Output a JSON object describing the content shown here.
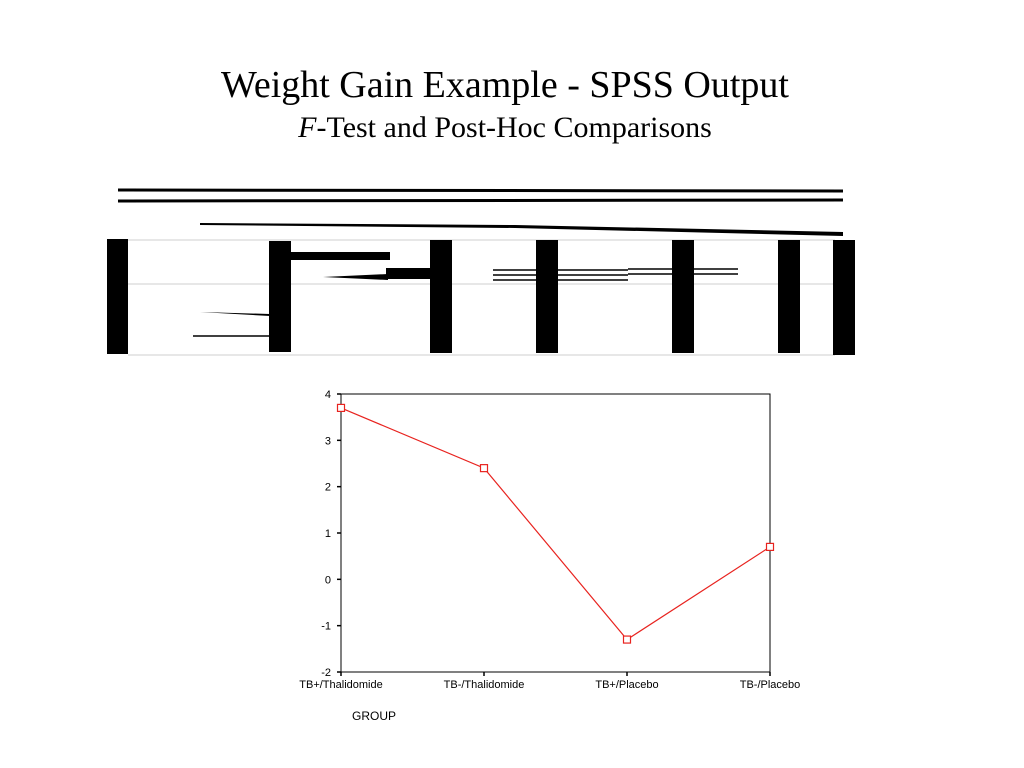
{
  "slide": {
    "title": "Weight Gain Example - SPSS Output",
    "subtitle_prefix": "F",
    "subtitle_rest": "-Test and Post-Hoc Comparisons"
  },
  "chart_data": {
    "type": "line",
    "xlabel": "GROUP",
    "ylabel": "",
    "categories": [
      "TB+/Thalidomide",
      "TB-/Thalidomide",
      "TB+/Placebo",
      "TB-/Placebo"
    ],
    "series": [
      {
        "values": [
          3.7,
          2.4,
          -1.3,
          0.7
        ],
        "color": "#e8231f"
      }
    ],
    "ylim": [
      -2,
      4
    ],
    "yticks": [
      -2,
      -1,
      0,
      1,
      2,
      3,
      4
    ],
    "grid": false,
    "marker": "open-square"
  }
}
